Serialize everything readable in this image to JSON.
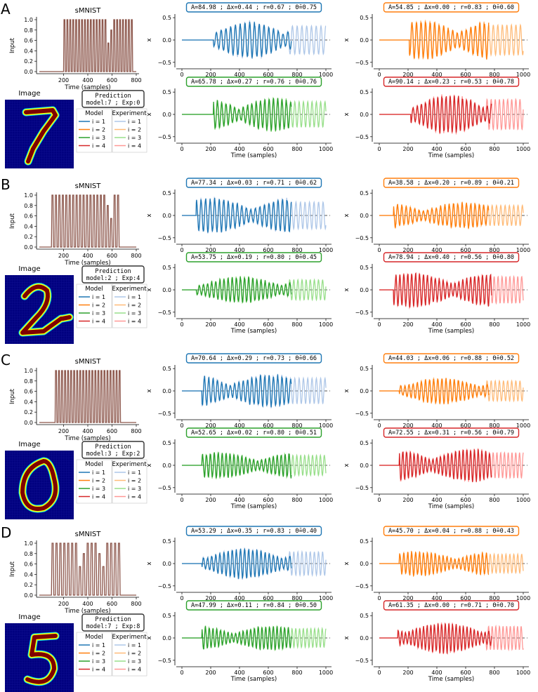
{
  "figure": {
    "panels": [
      {
        "label": "A",
        "smnist": {
          "title": "sMNIST",
          "ylabel": "Input",
          "xlabel": "Time (samples)",
          "xticks": [
            "200",
            "400",
            "600",
            "800"
          ],
          "yticks": [
            "0.0",
            "0.2",
            "0.4",
            "0.6",
            "0.8",
            "1.0"
          ],
          "input_on": [
            200,
            780
          ],
          "input_gaps": [
            [
              560,
              600
            ]
          ],
          "pulse_count": 24
        },
        "image": {
          "label": "Image",
          "digit": "7"
        },
        "prediction": {
          "title": "Prediction",
          "text": "model:7 ; Exp:0"
        },
        "responses": [
          {
            "stats": "A=84.98 ; Δx=0.44 ; r=0.67 ; Θ̄=0.75",
            "color": "#1f77b4",
            "light": "#aec7e8",
            "onset": 220,
            "amp": 0.42,
            "model_end": 760
          },
          {
            "stats": "A=54.85 ; Δx=0.00 ; r=0.83 ; Θ̄=0.60",
            "color": "#ff7f0e",
            "light": "#ffbb78",
            "onset": 210,
            "amp": 0.45,
            "model_end": 760
          },
          {
            "stats": "A=65.78 ; Δx=0.27 ; r=0.76 ; Θ̄=0.76",
            "color": "#2ca02c",
            "light": "#98df8a",
            "onset": 220,
            "amp": 0.38,
            "model_end": 760
          },
          {
            "stats": "A=90.14 ; Δx=0.23 ; r=0.53 ; Θ̄=0.78",
            "color": "#d62728",
            "light": "#ff9896",
            "onset": 220,
            "amp": 0.45,
            "model_end": 780
          }
        ]
      },
      {
        "label": "B",
        "smnist": {
          "title": "sMNIST",
          "ylabel": "Input",
          "xlabel": "Time (samples)",
          "xticks": [
            "200",
            "400",
            "600",
            "800"
          ],
          "yticks": [
            "0.0",
            "0.2",
            "0.4",
            "0.6",
            "0.8",
            "1.0"
          ],
          "input_on": [
            100,
            670
          ],
          "input_gaps": [
            [
              540,
              610
            ]
          ],
          "pulse_count": 20
        },
        "image": {
          "label": "Image",
          "digit": "2"
        },
        "prediction": {
          "title": "Prediction",
          "text": "model:2 ; Exp:4"
        },
        "responses": [
          {
            "stats": "A=77.34 ; Δx=0.03 ; r=0.71 ; Θ̄=0.62",
            "color": "#1f77b4",
            "light": "#aec7e8",
            "onset": 100,
            "amp": 0.4,
            "model_end": 760
          },
          {
            "stats": "A=38.58 ; Δx=0.20 ; r=0.89 ; Θ̄=0.21",
            "color": "#ff7f0e",
            "light": "#ffbb78",
            "onset": 100,
            "amp": 0.3,
            "model_end": 760
          },
          {
            "stats": "A=53.75 ; Δx=0.19 ; r=0.80 ; Θ̄=0.45",
            "color": "#2ca02c",
            "light": "#98df8a",
            "onset": 100,
            "amp": 0.3,
            "model_end": 760
          },
          {
            "stats": "A=78.94 ; Δx=0.40 ; r=0.56 ; Θ̄=0.80",
            "color": "#d62728",
            "light": "#ff9896",
            "onset": 100,
            "amp": 0.4,
            "model_end": 780
          }
        ]
      },
      {
        "label": "C",
        "smnist": {
          "title": "sMNIST",
          "ylabel": "Input",
          "xlabel": "Time (samples)",
          "xticks": [
            "200",
            "400",
            "600",
            "800"
          ],
          "yticks": [
            "0.0",
            "0.2",
            "0.4",
            "0.6",
            "0.8",
            "1.0"
          ],
          "input_on": [
            130,
            680
          ],
          "input_gaps": [],
          "pulse_count": 22
        },
        "image": {
          "label": "Image",
          "digit": "0"
        },
        "prediction": {
          "title": "Prediction",
          "text": "model:3 ; Exp:2"
        },
        "responses": [
          {
            "stats": "A=70.64 ; Δx=0.29 ; r=0.73 ; Θ̄=0.66",
            "color": "#1f77b4",
            "light": "#aec7e8",
            "onset": 140,
            "amp": 0.38,
            "model_end": 760
          },
          {
            "stats": "A=44.03 ; Δx=0.06 ; r=0.88 ; Θ̄=0.52",
            "color": "#ff7f0e",
            "light": "#ffbb78",
            "onset": 140,
            "amp": 0.3,
            "model_end": 760
          },
          {
            "stats": "A=52.65 ; Δx=0.02 ; r=0.80 ; Θ̄=0.51",
            "color": "#2ca02c",
            "light": "#98df8a",
            "onset": 140,
            "amp": 0.3,
            "model_end": 760
          },
          {
            "stats": "A=72.55 ; Δx=0.31 ; r=0.56 ; Θ̄=0.79",
            "color": "#d62728",
            "light": "#ff9896",
            "onset": 140,
            "amp": 0.38,
            "model_end": 780
          }
        ]
      },
      {
        "label": "D",
        "smnist": {
          "title": "sMNIST",
          "ylabel": "Input",
          "xlabel": "Time (samples)",
          "xticks": [
            "200",
            "400",
            "600",
            "800"
          ],
          "yticks": [
            "0.0",
            "0.2",
            "0.4",
            "0.6",
            "0.8",
            "1.0"
          ],
          "input_on": [
            100,
            680
          ],
          "input_gaps": [
            [
              310,
              380
            ],
            [
              470,
              540
            ]
          ],
          "pulse_count": 18
        },
        "image": {
          "label": "Image",
          "digit": "5"
        },
        "prediction": {
          "title": "Prediction",
          "text": "model:7 ; Exp:8"
        },
        "responses": [
          {
            "stats": "A=53.29 ; Δx=0.35 ; r=0.83 ; Θ̄=0.40",
            "color": "#1f77b4",
            "light": "#aec7e8",
            "onset": 140,
            "amp": 0.35,
            "model_end": 760
          },
          {
            "stats": "A=45.70 ; Δx=0.04 ; r=0.88 ; Θ̄=0.43",
            "color": "#ff7f0e",
            "light": "#ffbb78",
            "onset": 140,
            "amp": 0.28,
            "model_end": 760
          },
          {
            "stats": "A=47.99 ; Δx=0.11 ; r=0.84 ; Θ̄=0.50",
            "color": "#2ca02c",
            "light": "#98df8a",
            "onset": 140,
            "amp": 0.28,
            "model_end": 760
          },
          {
            "stats": "A=61.35 ; Δx=0.00 ; r=0.71 ; Θ̄=0.70",
            "color": "#d62728",
            "light": "#ff9896",
            "onset": 130,
            "amp": 0.35,
            "model_end": 780
          }
        ]
      }
    ],
    "response_axes": {
      "ylabel": "x",
      "xlabel": "Time (samples)",
      "xticks": [
        "0",
        "200",
        "400",
        "600",
        "800",
        "1000"
      ],
      "yticks": [
        "−0.5",
        "0.0",
        "0.5"
      ],
      "xlim": [
        0,
        1000
      ],
      "ylim": [
        -0.55,
        0.55
      ]
    },
    "legend": {
      "model_title": "Model",
      "experiment_title": "Experiment",
      "items": [
        "i = 1",
        "i = 2",
        "i = 3",
        "i = 4"
      ],
      "model_colors": [
        "#1f77b4",
        "#ff7f0e",
        "#2ca02c",
        "#d62728"
      ],
      "exp_colors": [
        "#aec7e8",
        "#ffbb78",
        "#98df8a",
        "#ff9896"
      ]
    },
    "input_color": "#8c564b",
    "image_colors": {
      "background": "#00007f",
      "stroke": "#7f0000",
      "edge_yellow": "#ffff00",
      "edge_cyan": "#00ffff"
    }
  },
  "chart_data": [
    {
      "type": "line",
      "title": "sMNIST",
      "xlabel": "Time (samples)",
      "ylabel": "Input",
      "xlim": [
        0,
        800
      ],
      "ylim": [
        0,
        1
      ],
      "series": [
        {
          "name": "",
          "description_on": [
            200,
            780
          ]
        }
      ]
    },
    {
      "type": "line",
      "xlabel": "Time (samples)",
      "ylabel": "x",
      "xlim": [
        0,
        1000
      ],
      "ylim": [
        -0.55,
        0.55
      ],
      "series": [
        {
          "name": "Model i = 1"
        },
        {
          "name": "Model i = 2"
        },
        {
          "name": "Model i = 3"
        },
        {
          "name": "Model i = 4"
        },
        {
          "name": "Experiment i = 1"
        },
        {
          "name": "Experiment i = 2"
        },
        {
          "name": "Experiment i = 3"
        },
        {
          "name": "Experiment i = 4"
        }
      ]
    }
  ]
}
